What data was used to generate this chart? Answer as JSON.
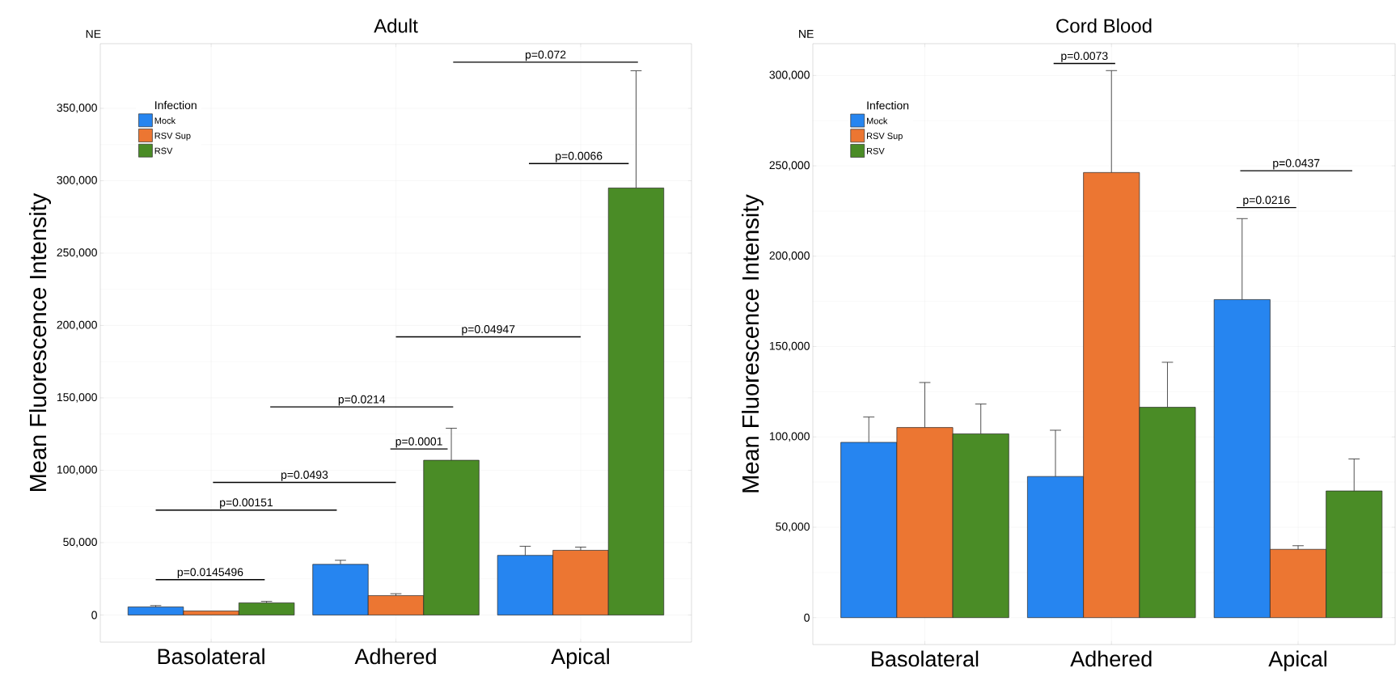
{
  "chart_data": [
    {
      "type": "bar",
      "title": "Adult",
      "subtitle": "NE",
      "ylabel": "Mean Fluorescence Intensity",
      "legend_title": "Infection",
      "legend": "top left",
      "grid": true,
      "categories": [
        "Basolateral",
        "Adhered",
        "Apical"
      ],
      "ylim": [
        -18750,
        394700
      ],
      "yticks": [
        {
          "value": 0,
          "label": "0"
        },
        {
          "value": 50000,
          "label": "50,000"
        },
        {
          "value": 100000,
          "label": "100,000"
        },
        {
          "value": 150000,
          "label": "150,000"
        },
        {
          "value": 200000,
          "label": "200,000"
        },
        {
          "value": 250000,
          "label": "250,000"
        },
        {
          "value": 300000,
          "label": "300,000"
        },
        {
          "value": 350000,
          "label": "350,000"
        }
      ],
      "series": [
        {
          "name": "Mock",
          "color": "#2685f0",
          "values": [
            5600,
            35000,
            41200
          ],
          "errors": [
            [
              5600,
              6500
            ],
            [
              35000,
              37800
            ],
            [
              41200,
              47500
            ]
          ]
        },
        {
          "name": "RSV Sup",
          "color": "#ec7632",
          "values": [
            2800,
            13400,
            44700
          ],
          "errors": [
            null,
            [
              13400,
              14700
            ],
            [
              44700,
              46900
            ]
          ]
        },
        {
          "name": "RSV",
          "color": "#4a8c26",
          "values": [
            8400,
            106900,
            295000
          ],
          "errors": [
            [
              8400,
              9400
            ],
            [
              106900,
              129000
            ],
            [
              295000,
              376000
            ]
          ]
        }
      ],
      "annotations": [
        "p=0.072",
        "p=0.0066",
        "p=0.04947",
        "p=0.0214",
        "p=0.0001",
        "p=0.0493",
        "p=0.00151",
        "p=0.0145496"
      ]
    },
    {
      "type": "bar",
      "title": "Cord Blood",
      "subtitle": "NE",
      "ylabel": "Mean Fluorescence Intensity",
      "legend_title": "Infection",
      "legend": "top left",
      "grid": true,
      "categories": [
        "Basolateral",
        "Adhered",
        "Apical"
      ],
      "ylim": [
        -14900,
        317600
      ],
      "yticks": [
        {
          "value": 0,
          "label": "0"
        },
        {
          "value": 50000,
          "label": "50,000"
        },
        {
          "value": 100000,
          "label": "100,000"
        },
        {
          "value": 150000,
          "label": "150,000"
        },
        {
          "value": 200000,
          "label": "200,000"
        },
        {
          "value": 250000,
          "label": "250,000"
        },
        {
          "value": 300000,
          "label": "300,000"
        }
      ],
      "series": [
        {
          "name": "Mock",
          "color": "#2685f0",
          "values": [
            97000,
            78100,
            176000
          ],
          "errors": [
            [
              97000,
              111000
            ],
            [
              78100,
              103700
            ],
            [
              176000,
              220800
            ]
          ]
        },
        {
          "name": "RSV Sup",
          "color": "#ec7632",
          "values": [
            105200,
            246300,
            37800
          ],
          "errors": [
            [
              105200,
              130100
            ],
            [
              246300,
              302700
            ],
            [
              37800,
              39800
            ]
          ]
        },
        {
          "name": "RSV",
          "color": "#4a8c26",
          "values": [
            101700,
            116400,
            70100
          ],
          "errors": [
            [
              101700,
              118200
            ],
            [
              116400,
              141300
            ],
            [
              70100,
              87800
            ]
          ]
        }
      ],
      "annotations": [
        "p=0.0073",
        "p=0.0437",
        "p=0.0216"
      ]
    }
  ]
}
